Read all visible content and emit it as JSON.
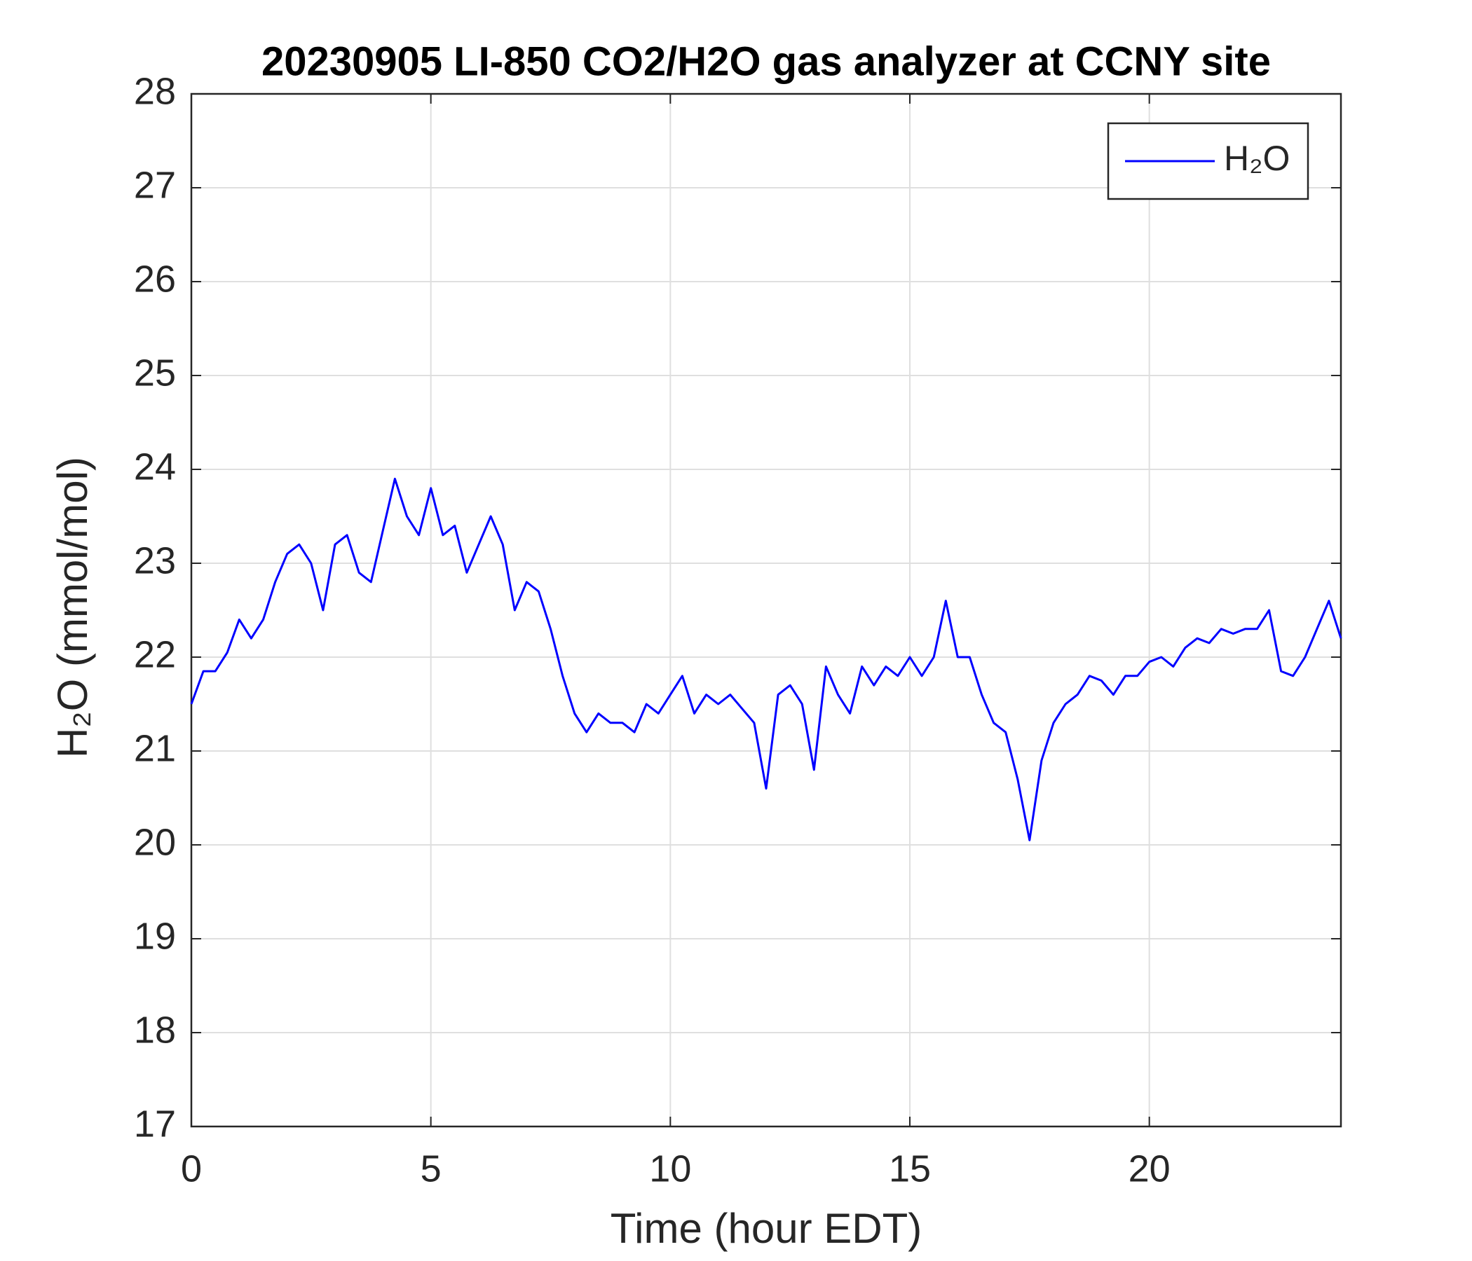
{
  "chart_data": {
    "type": "line",
    "title": "20230905 LI-850 CO2/H2O gas analyzer at CCNY site",
    "xlabel": "Time (hour EDT)",
    "ylabel": "H₂O (mmol/mol)",
    "x": [
      0,
      0.25,
      0.5,
      0.75,
      1,
      1.25,
      1.5,
      1.75,
      2,
      2.25,
      2.5,
      2.75,
      3,
      3.25,
      3.5,
      3.75,
      4,
      4.25,
      4.5,
      4.75,
      5,
      5.25,
      5.5,
      5.75,
      6,
      6.25,
      6.5,
      6.75,
      7,
      7.25,
      7.5,
      7.75,
      8,
      8.25,
      8.5,
      8.75,
      9,
      9.25,
      9.5,
      9.75,
      10,
      10.25,
      10.5,
      10.75,
      11,
      11.25,
      11.5,
      11.75,
      12,
      12.25,
      12.5,
      12.75,
      13,
      13.25,
      13.5,
      13.75,
      14,
      14.25,
      14.5,
      14.75,
      15,
      15.25,
      15.5,
      15.75,
      16,
      16.25,
      16.5,
      16.75,
      17,
      17.25,
      17.5,
      17.75,
      18,
      18.25,
      18.5,
      18.75,
      19,
      19.25,
      19.5,
      19.75,
      20,
      20.25,
      20.5,
      20.75,
      21,
      21.25,
      21.5,
      21.75,
      22,
      22.25,
      22.5,
      22.75,
      23,
      23.25,
      23.5,
      23.75,
      24
    ],
    "series": [
      {
        "name": "H₂O",
        "color": "#0000ff",
        "values": [
          21.5,
          21.85,
          21.85,
          22.05,
          22.4,
          22.2,
          22.4,
          22.8,
          23.1,
          23.2,
          23.0,
          22.5,
          23.2,
          23.3,
          22.9,
          22.8,
          23.35,
          23.9,
          23.5,
          23.3,
          23.8,
          23.3,
          23.4,
          22.9,
          23.2,
          23.5,
          23.2,
          22.5,
          22.8,
          22.7,
          22.3,
          21.8,
          21.4,
          21.2,
          21.4,
          21.3,
          21.3,
          21.2,
          21.5,
          21.4,
          21.6,
          21.8,
          21.4,
          21.6,
          21.5,
          21.6,
          21.45,
          21.3,
          20.6,
          21.6,
          21.7,
          21.5,
          20.8,
          21.9,
          21.6,
          21.4,
          21.9,
          21.7,
          21.9,
          21.8,
          22.0,
          21.8,
          22.0,
          22.6,
          22.0,
          22.0,
          21.6,
          21.3,
          21.2,
          20.7,
          20.05,
          20.9,
          21.3,
          21.5,
          21.6,
          21.8,
          21.75,
          21.6,
          21.8,
          21.8,
          21.95,
          22.0,
          21.9,
          22.1,
          22.2,
          22.15,
          22.3,
          22.25,
          22.3,
          22.3,
          22.5,
          21.85,
          21.8,
          22.0,
          22.3,
          22.6,
          22.2
        ]
      }
    ],
    "xlim": [
      0,
      24
    ],
    "xticks": [
      0,
      5,
      10,
      15,
      20
    ],
    "ylim": [
      17,
      28
    ],
    "yticks": [
      17,
      18,
      19,
      20,
      21,
      22,
      23,
      24,
      25,
      26,
      27,
      28
    ],
    "grid": true,
    "legend": "upper right"
  }
}
